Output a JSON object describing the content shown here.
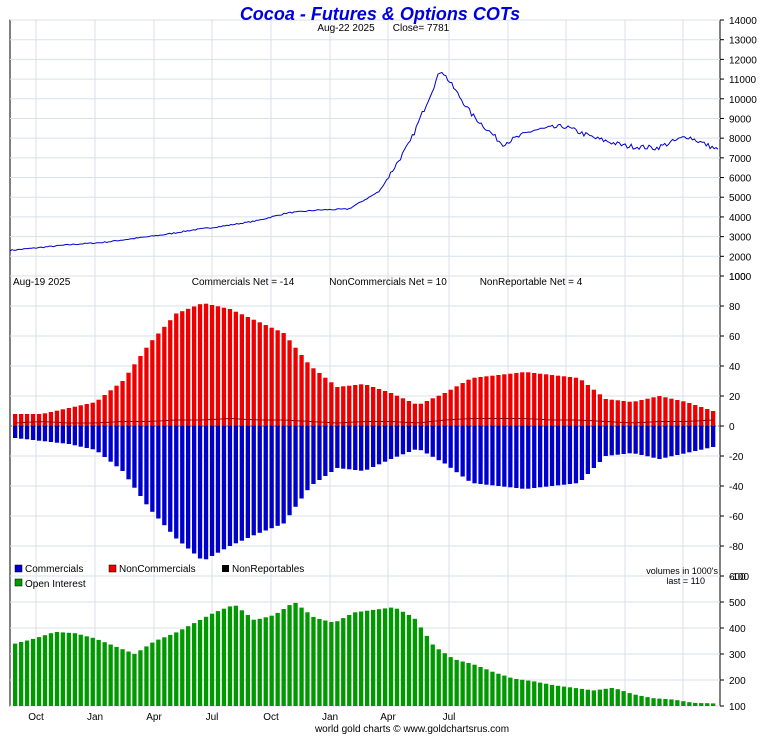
{
  "chart_data": [
    {
      "type": "line",
      "title": "Cocoa - Futures & Options COTs",
      "subtitle_date": "Aug-22  2025",
      "subtitle_close": "Close= 7781",
      "ylim": [
        1000,
        14000
      ],
      "y_ticks": [
        "14000",
        "13000",
        "12000",
        "11000",
        "10000",
        "9000",
        "8000",
        "7000",
        "6000",
        "5000",
        "4000",
        "3000",
        "2000",
        "1000"
      ],
      "grid": true,
      "series": [
        {
          "color": "#0000cc",
          "x": [
            "2023-09",
            "2023-10",
            "2023-11",
            "2023-12",
            "2024-01",
            "2024-02",
            "2024-03",
            "2024-04",
            "2024-05",
            "2024-06",
            "2024-07",
            "2024-08",
            "2024-09",
            "2024-10",
            "2024-11",
            "2024-12",
            "2025-01",
            "2025-02",
            "2025-03",
            "2025-04",
            "2025-05",
            "2025-06",
            "2025-07",
            "2025-08"
          ],
          "values": [
            2300,
            2450,
            2600,
            2700,
            2900,
            3100,
            3350,
            3550,
            3800,
            4200,
            4350,
            4400,
            5300,
            7800,
            11500,
            9200,
            7700,
            8400,
            8600,
            8000,
            7600,
            7500,
            8100,
            7400
          ]
        }
      ]
    },
    {
      "type": "bar",
      "header_date": "Aug-19  2025",
      "stats": [
        "Commercials Net = -14",
        "NonCommercials Net = 10",
        "NonReportable Net = 4"
      ],
      "ylim": [
        -100,
        100
      ],
      "y_ticks": [
        "100",
        "80",
        "60",
        "40",
        "20",
        "0",
        "-20",
        "-40",
        "-60",
        "-80",
        "-100"
      ],
      "legend": [
        "Commercials",
        "NonCommercials",
        "NonReportables"
      ],
      "colors": {
        "commercials": "#0000cc",
        "noncommercials": "#ee0000",
        "nonreportables": "#000000",
        "net_line": "#990000"
      },
      "series": [
        {
          "name": "Commercials",
          "values": [
            -8,
            -10,
            -12,
            -16,
            -30,
            -55,
            -75,
            -90,
            -80,
            -72,
            -65,
            -40,
            -28,
            -30,
            -22,
            -15,
            -25,
            -38,
            -40,
            -42,
            -40,
            -38,
            -20,
            -18,
            -22,
            -18,
            -14
          ]
        },
        {
          "name": "NonCommercials",
          "values": [
            8,
            8,
            12,
            16,
            30,
            55,
            75,
            82,
            78,
            70,
            62,
            40,
            26,
            28,
            22,
            14,
            22,
            32,
            34,
            36,
            34,
            32,
            18,
            16,
            20,
            16,
            10
          ]
        },
        {
          "name": "NonReportables",
          "values": [
            2,
            3,
            2,
            2,
            3,
            3,
            4,
            4,
            5,
            4,
            4,
            3,
            2,
            3,
            3,
            2,
            4,
            5,
            5,
            5,
            4,
            4,
            3,
            2,
            3,
            3,
            4
          ]
        }
      ]
    },
    {
      "type": "bar",
      "legend": [
        "Open Interest"
      ],
      "note_units": "volumes in 1000's",
      "note_last": "last = 110",
      "ylim": [
        100,
        600
      ],
      "y_ticks": [
        "600",
        "500",
        "400",
        "300",
        "200",
        "100"
      ],
      "color": "#009900",
      "x_ticks": [
        "Oct",
        "Jan",
        "Apr",
        "Jul",
        "Oct",
        "Jan",
        "Apr",
        "Jul"
      ],
      "series": [
        {
          "name": "Open Interest",
          "values": [
            340,
            360,
            385,
            380,
            360,
            330,
            300,
            350,
            380,
            420,
            460,
            490,
            430,
            450,
            500,
            440,
            420,
            460,
            470,
            480,
            440,
            330,
            280,
            260,
            230,
            205,
            195,
            180,
            170,
            160,
            170,
            145,
            130,
            125,
            112,
            110
          ]
        }
      ]
    }
  ],
  "footer": "world gold charts © www.goldchartsrus.com"
}
